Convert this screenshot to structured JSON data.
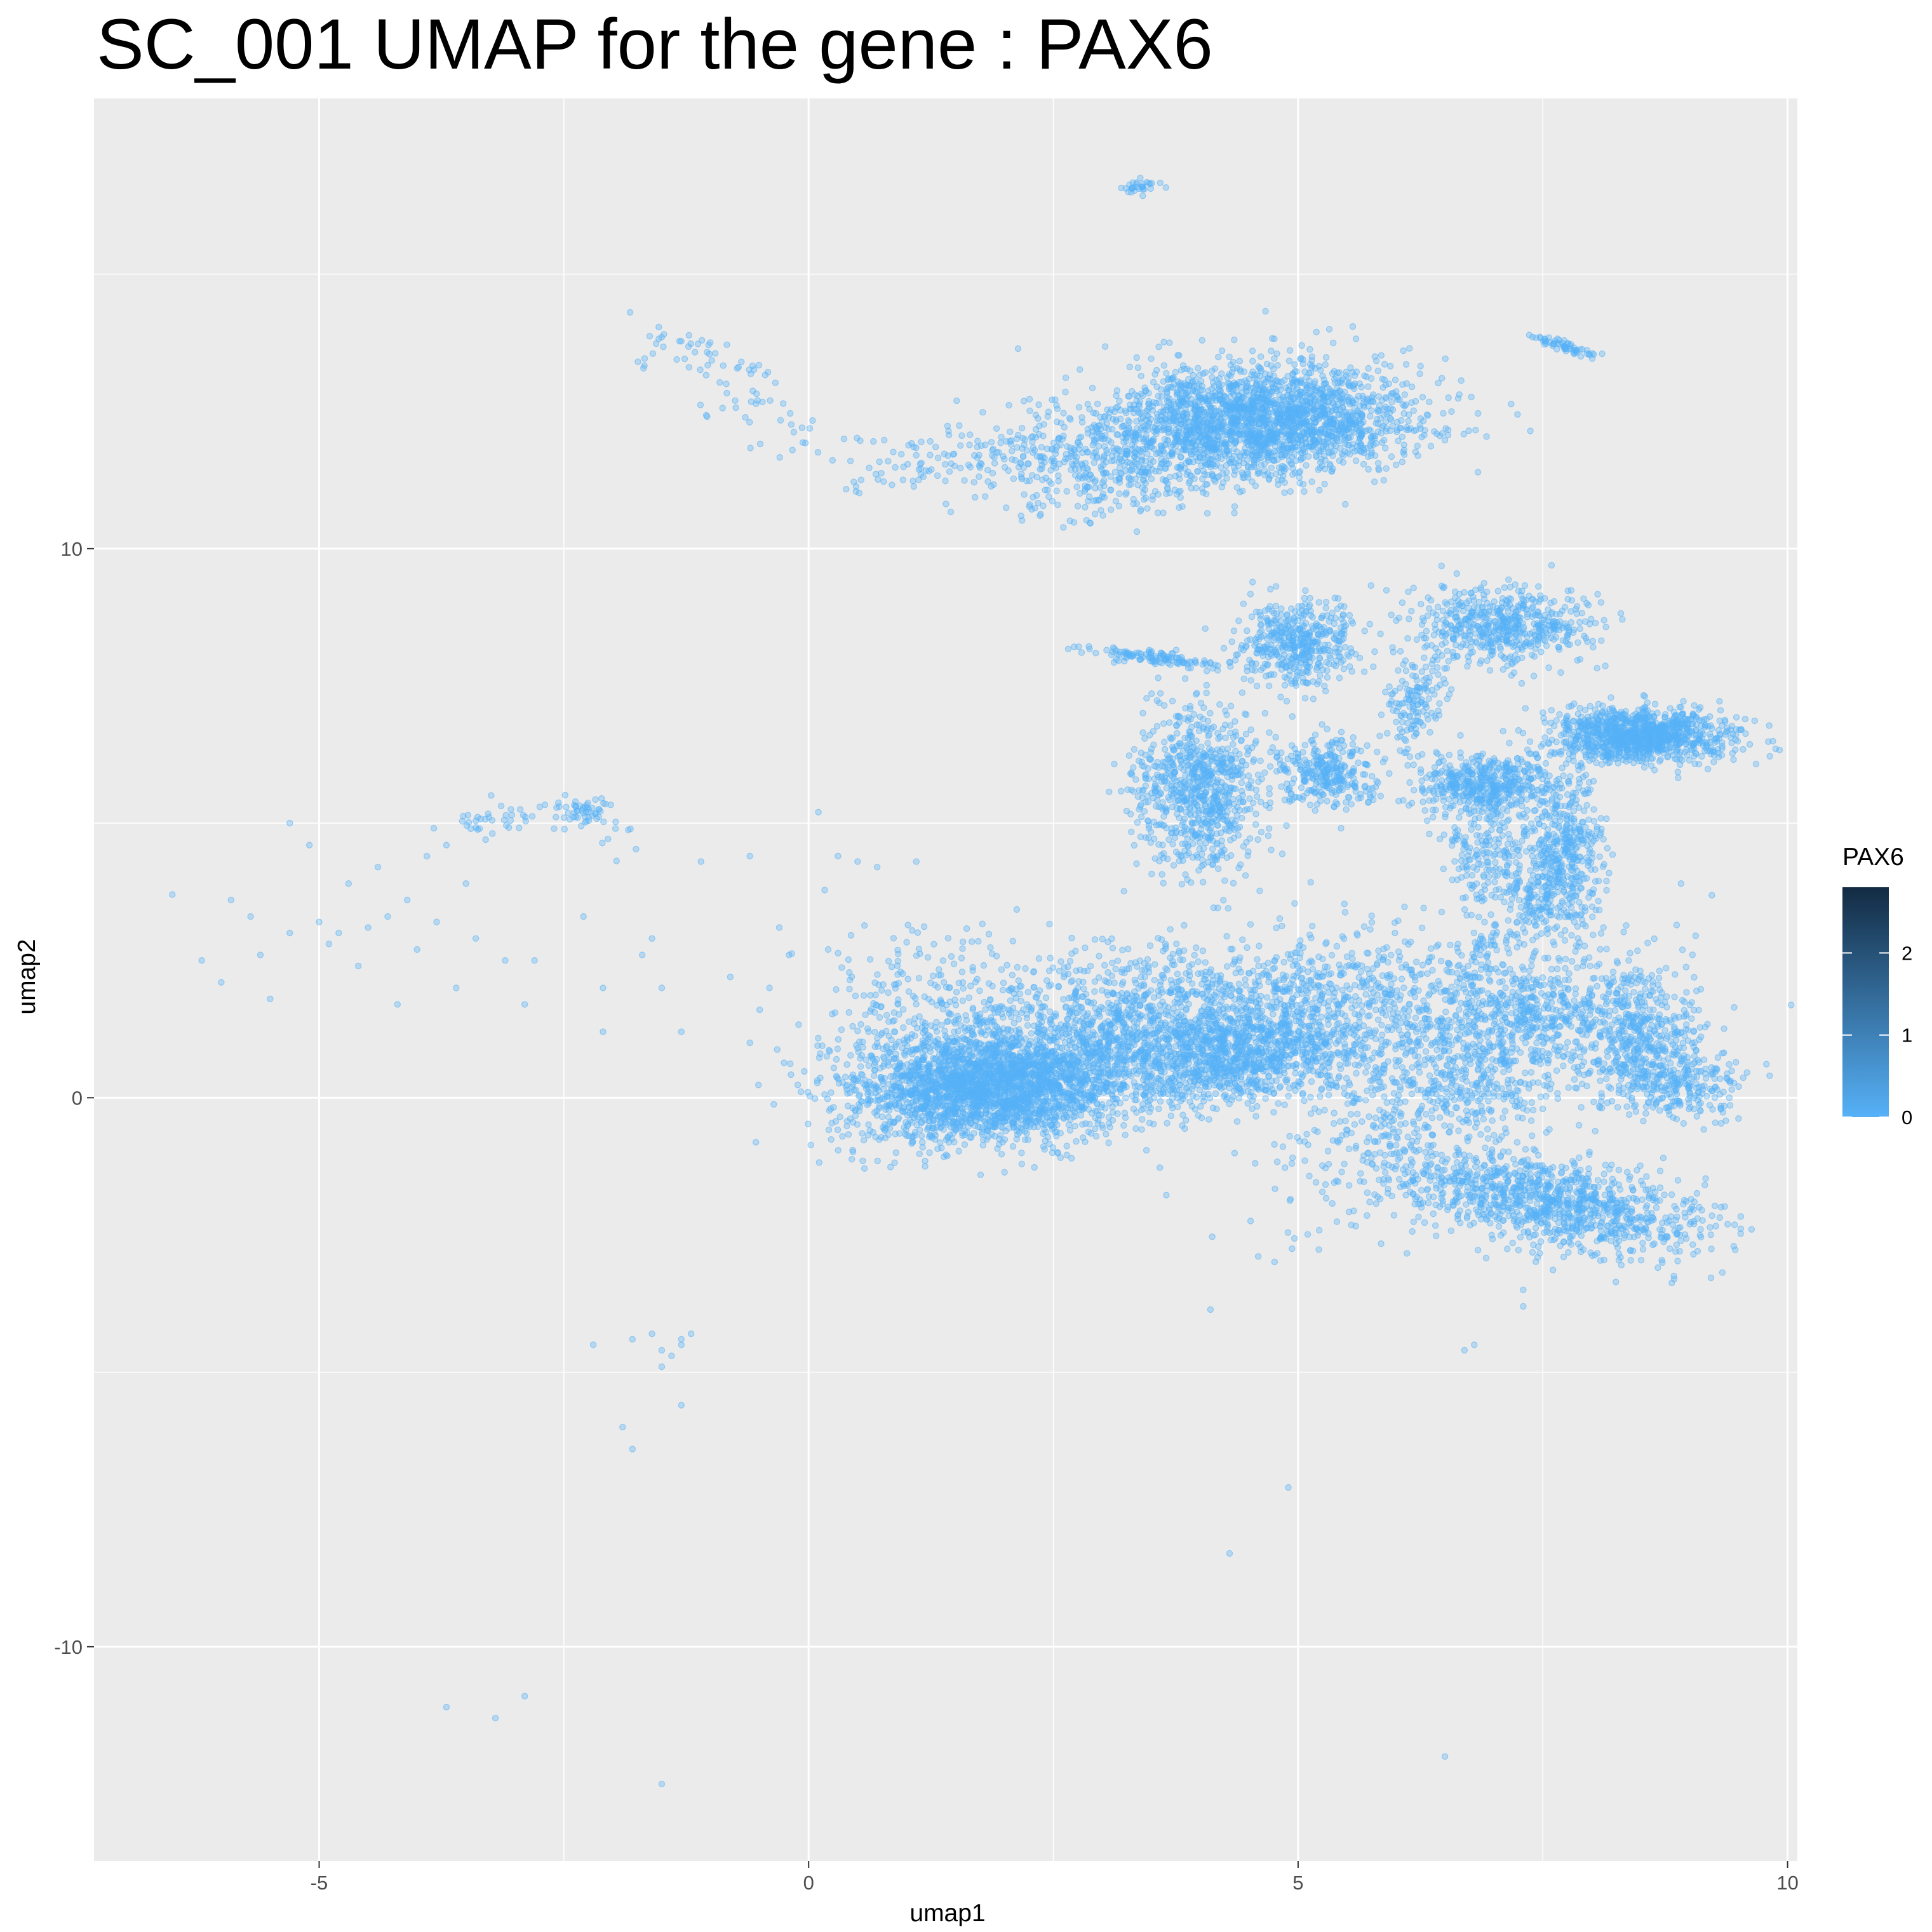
{
  "chart_data": {
    "type": "scatter",
    "title": "SC_001  UMAP for the gene :  PAX6",
    "xlabel": "umap1",
    "ylabel": "umap2",
    "xlim": [
      -7.3,
      10.1
    ],
    "ylim": [
      -13.9,
      18.2
    ],
    "x_ticks": [
      -5,
      0,
      5,
      10
    ],
    "x_tick_labels": [
      "-5",
      "0",
      "5",
      "10"
    ],
    "y_ticks": [
      -10,
      0,
      10
    ],
    "y_tick_labels": [
      "-10",
      "0",
      "10"
    ],
    "grid": true,
    "panel_background": "#ebebeb",
    "point_color": "#56b1f7",
    "point_alpha": 0.35,
    "legend": {
      "title": "PAX6",
      "placement": "right",
      "labels": [
        "0",
        "1",
        "2"
      ],
      "values": [
        0,
        1,
        2
      ],
      "range": [
        0,
        2.8
      ],
      "color_low": "#56b1f7",
      "color_high": "#132b43"
    },
    "clusters": [
      {
        "x": 1.9,
        "y": 0.2,
        "sx": 0.75,
        "sy": 0.5,
        "n": 2600,
        "rot": 12
      },
      {
        "x": 3.6,
        "y": 1.3,
        "sx": 1.0,
        "sy": 0.65,
        "n": 1400,
        "rot": 8
      },
      {
        "x": 4.4,
        "y": 0.7,
        "sx": 0.6,
        "sy": 0.35,
        "n": 700,
        "rot": 20
      },
      {
        "x": 1.3,
        "y": 1.6,
        "sx": 0.5,
        "sy": 0.8,
        "n": 250,
        "rot": 0
      },
      {
        "x": 5.8,
        "y": 1.6,
        "sx": 0.9,
        "sy": 0.8,
        "n": 700,
        "rot": 0
      },
      {
        "x": 6.8,
        "y": 0.5,
        "sx": 0.55,
        "sy": 1.4,
        "n": 900,
        "rot": -35
      },
      {
        "x": 7.6,
        "y": -1.9,
        "sx": 0.9,
        "sy": 0.4,
        "n": 1100,
        "rot": -20
      },
      {
        "x": 8.5,
        "y": 1.0,
        "sx": 0.3,
        "sy": 0.5,
        "n": 350,
        "rot": 0
      },
      {
        "x": 8.9,
        "y": 0.3,
        "sx": 0.35,
        "sy": 0.3,
        "n": 250,
        "rot": -30
      },
      {
        "x": 7.6,
        "y": 1.7,
        "sx": 0.6,
        "sy": 0.3,
        "n": 250,
        "rot": 0
      },
      {
        "x": 4.0,
        "y": 5.6,
        "sx": 0.35,
        "sy": 0.75,
        "n": 800,
        "rot": 0
      },
      {
        "x": 5.3,
        "y": 5.9,
        "sx": 0.25,
        "sy": 0.3,
        "n": 300,
        "rot": 0
      },
      {
        "x": 5.0,
        "y": 8.3,
        "sx": 0.28,
        "sy": 0.4,
        "n": 450,
        "rot": 0
      },
      {
        "x": 6.2,
        "y": 7.2,
        "sx": 0.15,
        "sy": 0.5,
        "n": 150,
        "rot": -10
      },
      {
        "x": 7.1,
        "y": 8.6,
        "sx": 0.45,
        "sy": 0.35,
        "n": 550,
        "rot": 0
      },
      {
        "x": 6.9,
        "y": 5.7,
        "sx": 0.35,
        "sy": 0.25,
        "n": 450,
        "rot": 0
      },
      {
        "x": 6.9,
        "y": 4.6,
        "sx": 0.2,
        "sy": 0.6,
        "n": 200,
        "rot": 0
      },
      {
        "x": 7.7,
        "y": 4.5,
        "sx": 0.2,
        "sy": 0.7,
        "n": 450,
        "rot": 0
      },
      {
        "x": 8.5,
        "y": 6.6,
        "sx": 0.45,
        "sy": 0.25,
        "n": 1100,
        "rot": 0
      },
      {
        "x": 7.3,
        "y": 3.8,
        "sx": 0.2,
        "sy": 0.5,
        "n": 90,
        "rot": 35
      },
      {
        "x": 3.6,
        "y": 8.0,
        "sx": 0.4,
        "sy": 0.06,
        "n": 120,
        "rot": -12
      },
      {
        "x": 3.4,
        "y": 16.6,
        "sx": 0.12,
        "sy": 0.05,
        "n": 30,
        "rot": 15
      },
      {
        "x": 7.7,
        "y": 13.7,
        "sx": 0.2,
        "sy": 0.05,
        "n": 60,
        "rot": -28
      },
      {
        "x": 4.7,
        "y": 12.4,
        "sx": 0.75,
        "sy": 0.5,
        "n": 2000,
        "rot": 0
      },
      {
        "x": 3.3,
        "y": 11.7,
        "sx": 0.8,
        "sy": 0.5,
        "n": 650,
        "rot": 10
      },
      {
        "x": -2.3,
        "y": 5.2,
        "sx": 0.15,
        "sy": 0.12,
        "n": 35,
        "rot": 0
      }
    ],
    "paths": [
      {
        "points": [
          [
            -1.6,
            13.8
          ],
          [
            -1.0,
            13.6
          ],
          [
            -0.4,
            12.4
          ],
          [
            0.8,
            11.3
          ],
          [
            1.7,
            11.8
          ],
          [
            2.5,
            11.8
          ]
        ],
        "n": 170,
        "spread": 0.22
      },
      {
        "points": [
          [
            -3.7,
            4.8
          ],
          [
            -3.0,
            5.2
          ],
          [
            -2.3,
            5.2
          ],
          [
            -1.8,
            4.6
          ]
        ],
        "n": 60,
        "spread": 0.12
      },
      {
        "points": [
          [
            7.6,
            3.9
          ],
          [
            7.0,
            2.8
          ],
          [
            6.7,
            2.1
          ]
        ],
        "n": 90,
        "spread": 0.12
      }
    ],
    "scatter_points": [
      [
        -6.5,
        3.7
      ],
      [
        -6.2,
        2.5
      ],
      [
        -6.0,
        2.1
      ],
      [
        -5.9,
        3.6
      ],
      [
        -5.7,
        3.3
      ],
      [
        -5.6,
        2.6
      ],
      [
        -5.5,
        1.8
      ],
      [
        -5.3,
        3.0
      ],
      [
        -5.3,
        5.0
      ],
      [
        -5.1,
        4.6
      ],
      [
        -5.0,
        3.2
      ],
      [
        -4.9,
        2.8
      ],
      [
        -4.8,
        3.0
      ],
      [
        -4.7,
        3.9
      ],
      [
        -4.6,
        2.4
      ],
      [
        -4.5,
        3.1
      ],
      [
        -4.4,
        4.2
      ],
      [
        -4.3,
        3.3
      ],
      [
        -4.2,
        1.7
      ],
      [
        -4.1,
        3.6
      ],
      [
        -4.0,
        2.7
      ],
      [
        -3.9,
        4.4
      ],
      [
        -3.8,
        3.2
      ],
      [
        -3.7,
        4.6
      ],
      [
        -3.6,
        2.0
      ],
      [
        -3.5,
        3.9
      ],
      [
        -3.4,
        2.9
      ],
      [
        -3.3,
        4.7
      ],
      [
        -3.1,
        2.5
      ],
      [
        -2.9,
        1.7
      ],
      [
        -2.8,
        2.5
      ],
      [
        -2.6,
        4.9
      ],
      [
        -2.3,
        3.3
      ],
      [
        -2.1,
        2.0
      ],
      [
        -2.1,
        1.2
      ],
      [
        -1.7,
        2.6
      ],
      [
        -1.6,
        2.9
      ],
      [
        -1.5,
        2.0
      ],
      [
        -1.3,
        1.2
      ],
      [
        -1.1,
        4.3
      ],
      [
        -0.8,
        2.2
      ],
      [
        -0.6,
        4.4
      ],
      [
        -0.5,
        1.6
      ],
      [
        -0.4,
        2.0
      ],
      [
        -0.3,
        3.1
      ],
      [
        -0.2,
        2.6
      ],
      [
        -0.6,
        1.0
      ],
      [
        0.1,
        5.2
      ],
      [
        0.3,
        4.4
      ],
      [
        0.5,
        4.3
      ],
      [
        0.7,
        4.2
      ],
      [
        1.1,
        4.3
      ],
      [
        0.2,
        2.7
      ],
      [
        0.5,
        0.9
      ],
      [
        -2.2,
        -4.5
      ],
      [
        -1.8,
        -4.4
      ],
      [
        -1.6,
        -4.3
      ],
      [
        -1.5,
        -4.6
      ],
      [
        -1.4,
        -4.7
      ],
      [
        -1.3,
        -4.4
      ],
      [
        -1.3,
        -4.5
      ],
      [
        -1.2,
        -4.3
      ],
      [
        -1.5,
        -4.9
      ],
      [
        -1.3,
        -5.6
      ],
      [
        -1.9,
        -6.0
      ],
      [
        -1.8,
        -6.4
      ],
      [
        -3.7,
        -11.1
      ],
      [
        -3.2,
        -11.3
      ],
      [
        -2.9,
        -10.9
      ],
      [
        -1.5,
        -12.5
      ],
      [
        4.9,
        -7.1
      ],
      [
        4.3,
        -8.3
      ],
      [
        6.5,
        -12.0
      ],
      [
        6.8,
        -4.5
      ],
      [
        6.7,
        -4.6
      ],
      [
        7.3,
        -3.8
      ],
      [
        7.3,
        -3.5
      ]
    ]
  }
}
